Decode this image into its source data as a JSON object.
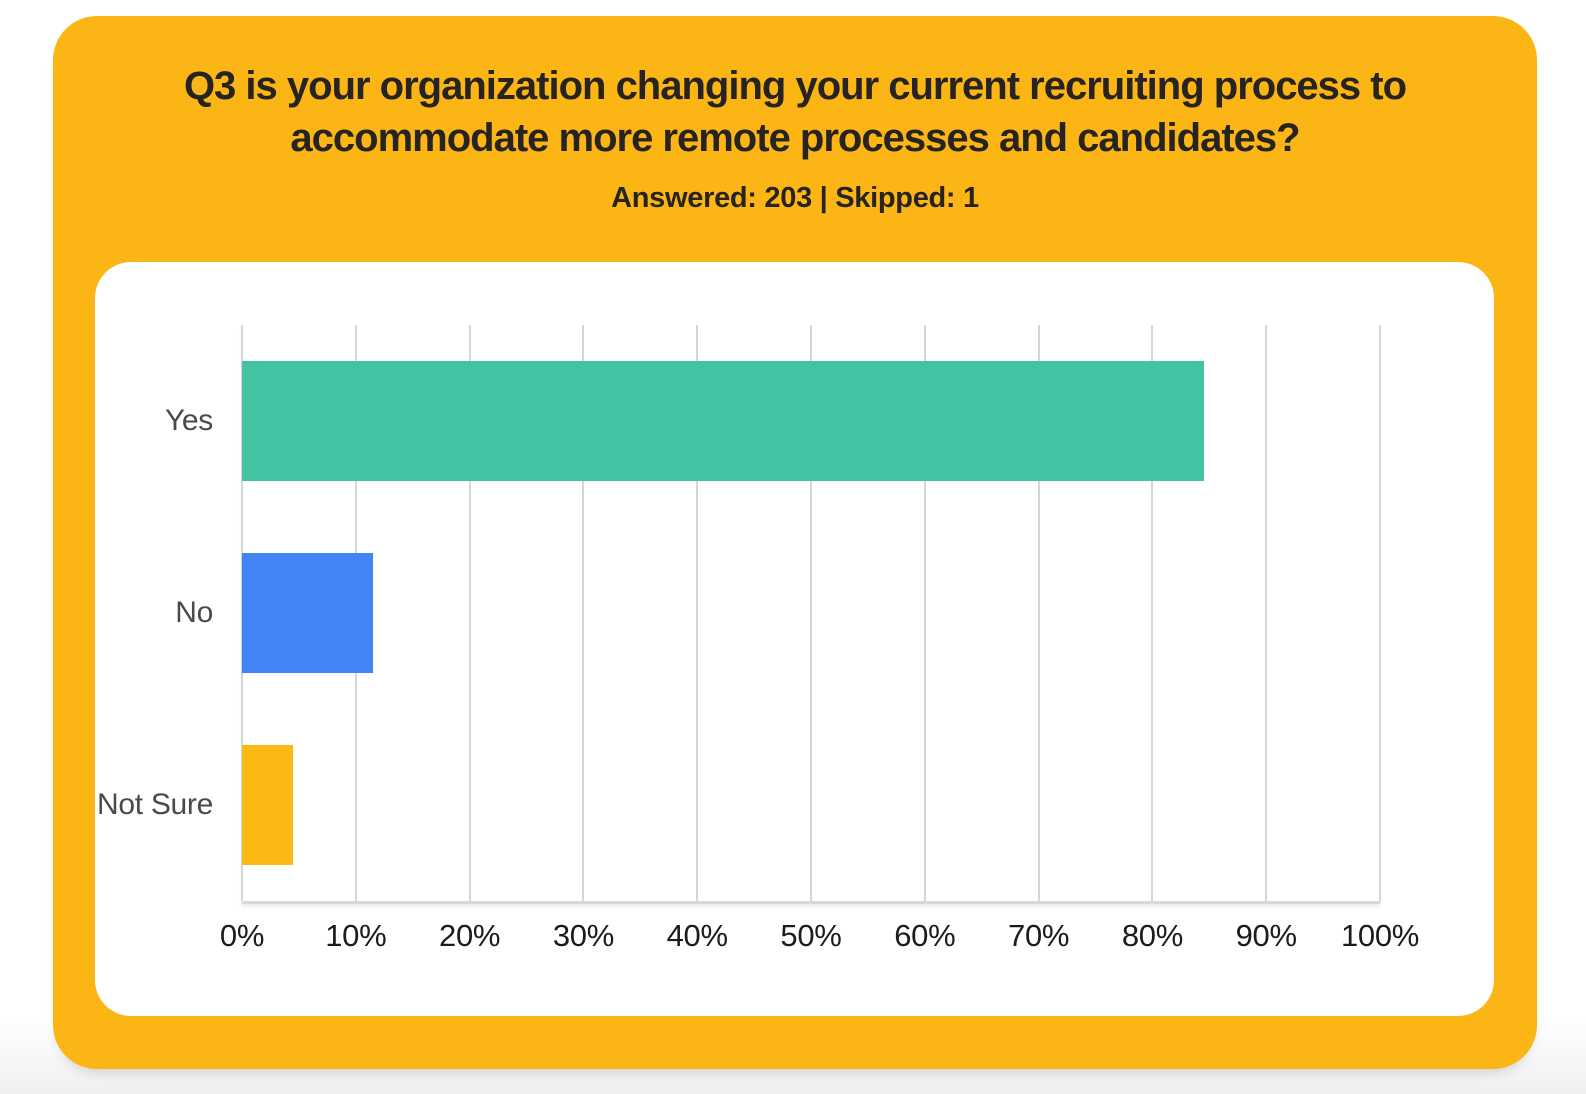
{
  "page": {
    "background": "#ffffff"
  },
  "question_card": {
    "background": "#FBB616",
    "text_color": "#272321",
    "title": "Q3 is your organization changing your current recruiting process to accommodate more remote processes and candidates?",
    "title_lines": [
      "Q3 is your organization changing your current recruiting process to",
      "accommodate more remote processes and candidates?"
    ],
    "stats": "Answered: 203 | Skipped: 1"
  },
  "chart_data": {
    "type": "bar",
    "orientation": "horizontal",
    "title": "",
    "xlabel": "",
    "ylabel": "",
    "categories": [
      "Yes",
      "No",
      "Not Sure"
    ],
    "values": [
      84.5,
      11.5,
      4.5
    ],
    "value_unit": "%",
    "bar_colors": [
      "#44C3A4",
      "#4285F4",
      "#FCB813"
    ],
    "xlim": [
      0,
      100
    ],
    "x_tick_step": 10,
    "x_tick_labels": [
      "0%",
      "10%",
      "20%",
      "30%",
      "40%",
      "50%",
      "60%",
      "70%",
      "80%",
      "90%",
      "100%"
    ],
    "grid": "vertical",
    "gridline_color": "#d6d6d6",
    "legend": false,
    "panel_background": "#ffffff"
  }
}
